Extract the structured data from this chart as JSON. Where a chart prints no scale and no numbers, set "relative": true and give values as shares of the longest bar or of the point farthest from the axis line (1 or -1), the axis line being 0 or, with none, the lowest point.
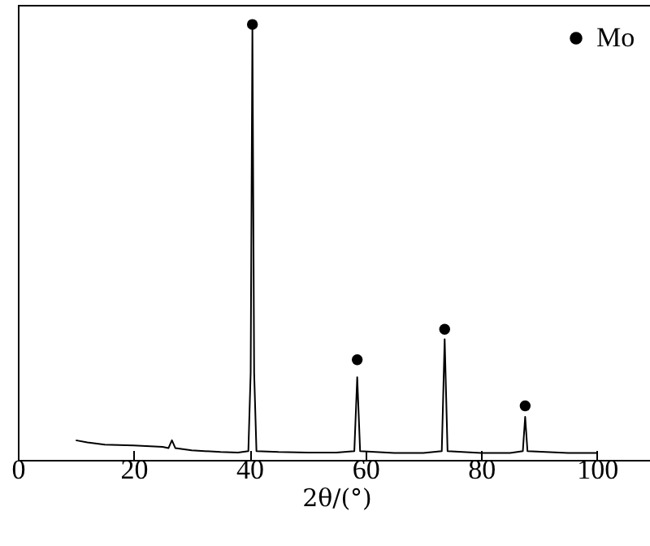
{
  "chart_data": {
    "type": "line",
    "xlabel": "2θ/(°)",
    "relative": true,
    "xlim": [
      0,
      110
    ],
    "xticks": [
      0,
      20,
      40,
      60,
      80,
      100
    ],
    "grid": false,
    "legend": "top right",
    "series": [
      {
        "type": "line",
        "color": "#000000",
        "x": [
          10,
          12,
          15,
          20,
          25,
          26,
          26.6,
          27.2,
          30,
          35,
          38,
          39.8,
          40.2,
          40.5,
          40.8,
          41.2,
          45,
          50,
          55,
          58.1,
          58.6,
          59.1,
          65,
          70,
          73.2,
          73.7,
          74.2,
          80,
          85,
          87.2,
          87.6,
          88,
          95,
          100
        ],
        "values": [
          0.045,
          0.04,
          0.035,
          0.033,
          0.03,
          0.027,
          0.045,
          0.027,
          0.022,
          0.018,
          0.017,
          0.02,
          0.2,
          0.99,
          0.2,
          0.02,
          0.018,
          0.017,
          0.017,
          0.02,
          0.19,
          0.02,
          0.016,
          0.016,
          0.02,
          0.277,
          0.02,
          0.016,
          0.016,
          0.02,
          0.099,
          0.02,
          0.016,
          0.016
        ]
      },
      {
        "type": "scatter",
        "name": "Mo",
        "color": "#000000",
        "marker": "circle",
        "x": [
          40.5,
          58.6,
          73.7,
          87.6
        ],
        "values": [
          1.0,
          0.23,
          0.3,
          0.124
        ]
      }
    ]
  }
}
